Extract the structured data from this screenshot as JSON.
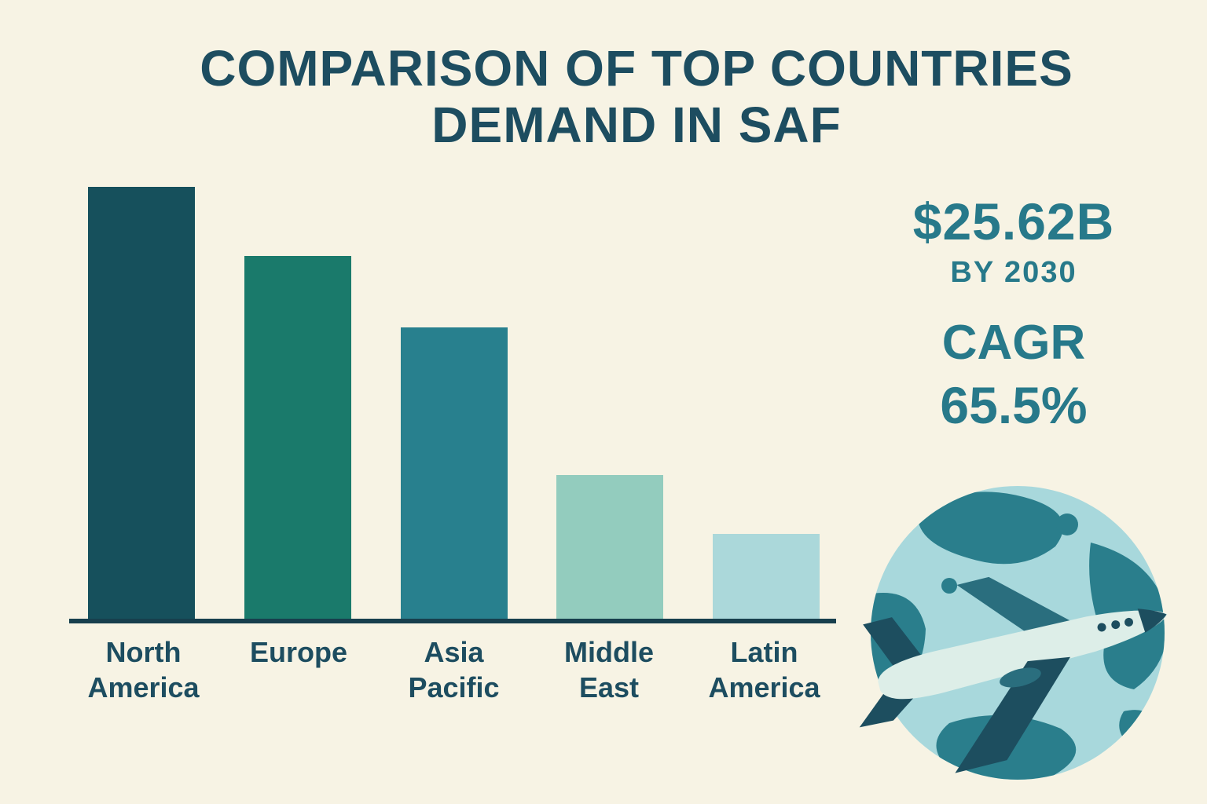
{
  "page": {
    "background_color": "#f7f3e4"
  },
  "title": {
    "line1": "COMPARISON OF TOP COUNTRIES",
    "line2": "DEMAND IN SAF",
    "color": "#1d4d60"
  },
  "stats": {
    "market_value": "$25.62B",
    "market_value_sub": "BY 2030",
    "cagr_label": "CAGR",
    "cagr_value": "65.5%",
    "color": "#27798a"
  },
  "chart_data": {
    "type": "bar",
    "title": "Comparison of top countries demand in SAF",
    "categories": [
      "North America",
      "Europe",
      "Asia Pacific",
      "Middle East",
      "Latin America"
    ],
    "values": [
      100,
      84,
      67.5,
      33.5,
      20
    ],
    "unit": "relative demand index (estimated from bar heights, no value axis shown)",
    "ylim": [
      0,
      100
    ],
    "grid": false,
    "legend": "none",
    "bar_colors": [
      "#16505c",
      "#1a7a6b",
      "#28808e",
      "#93ccbe",
      "#abd8da"
    ],
    "baseline_color": "#173f4d"
  },
  "illustration": {
    "name": "globe-with-airplane",
    "globe_ocean_color": "#a8d8dc",
    "globe_land_color": "#2a7e8c",
    "plane_dark_color": "#1d4e5f",
    "plane_body_color": "#ddeee8"
  }
}
